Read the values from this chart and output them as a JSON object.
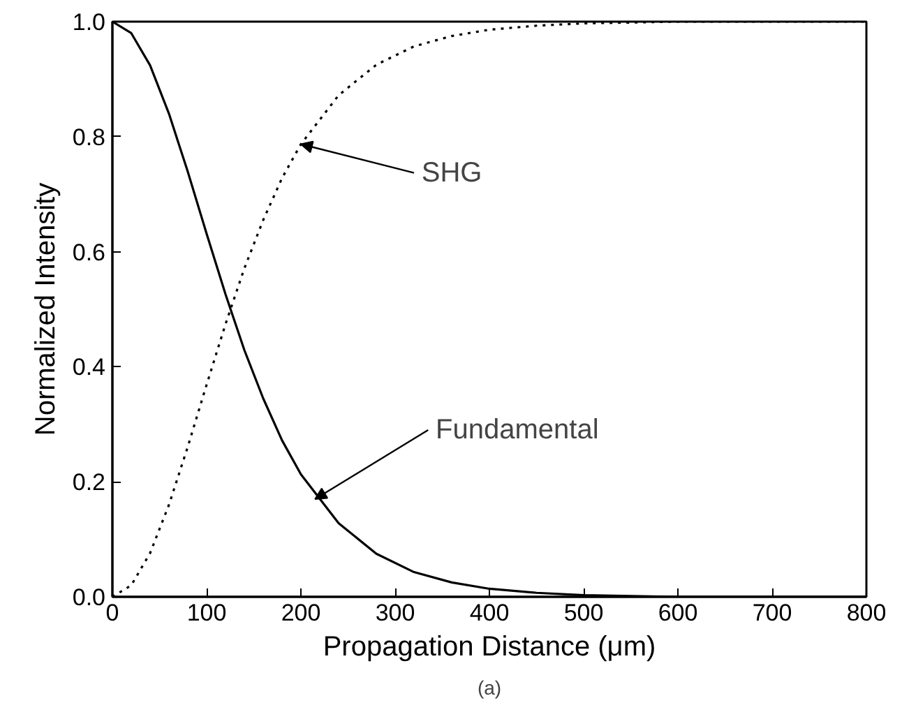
{
  "chart_data": {
    "type": "line",
    "xlabel": "Propagation Distance (μm)",
    "ylabel": "Normalized Intensity",
    "x": [
      0,
      20,
      40,
      60,
      80,
      100,
      120,
      140,
      160,
      180,
      200,
      240,
      280,
      320,
      360,
      400,
      450,
      500,
      600,
      700,
      800
    ],
    "series": [
      {
        "color": "#000000",
        "line_style": "solid",
        "values": [
          1.0,
          0.98,
          0.924,
          0.84,
          0.739,
          0.631,
          0.526,
          0.429,
          0.345,
          0.272,
          0.213,
          0.128,
          0.075,
          0.043,
          0.025,
          0.014,
          0.007,
          0.003,
          0.0,
          0.0,
          0.0
        ]
      },
      {
        "color": "#000000",
        "line_style": "dotted",
        "values": [
          0.0,
          0.02,
          0.076,
          0.16,
          0.261,
          0.369,
          0.474,
          0.571,
          0.655,
          0.728,
          0.787,
          0.872,
          0.925,
          0.957,
          0.975,
          0.986,
          0.993,
          0.997,
          1.0,
          1.0,
          1.0
        ]
      }
    ],
    "xlim": [
      0,
      800
    ],
    "ylim": [
      0,
      1.0
    ],
    "xticks": [
      0,
      100,
      200,
      300,
      400,
      500,
      600,
      700,
      800
    ],
    "yticks": [
      {
        "value": 0,
        "label": "0.0"
      },
      {
        "value": 0.2,
        "label": "0.2"
      },
      {
        "value": 0.4,
        "label": "0.4"
      },
      {
        "value": 0.6,
        "label": "0.6"
      },
      {
        "value": 0.8,
        "label": "0.8"
      },
      {
        "value": 1.0,
        "label": "1.0"
      }
    ],
    "grid": false,
    "marker": "none",
    "annotations": [
      {
        "text": "SHG",
        "x": 200,
        "y": 0.787
      },
      {
        "text": "Fundamental",
        "x": 215,
        "y": 0.17
      },
      "(a)"
    ]
  }
}
